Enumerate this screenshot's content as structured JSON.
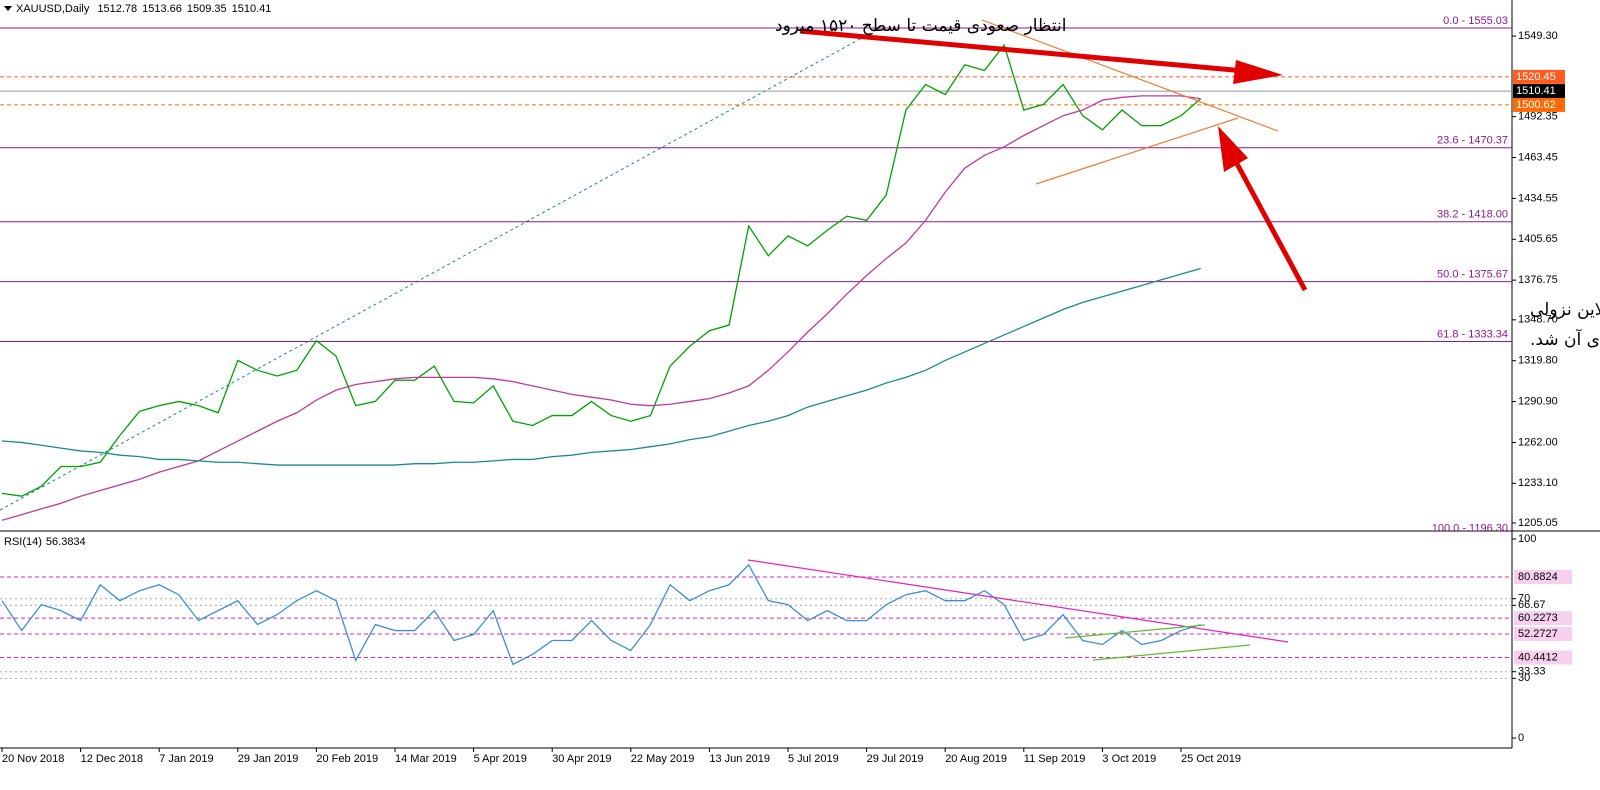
{
  "chart_data": [
    {
      "type": "line",
      "title": "XAUUSD,Daily",
      "ohlc": [
        1512.78,
        1513.66,
        1509.35,
        1510.41
      ],
      "categories": [
        "20 Nov 2018",
        null,
        null,
        null,
        "12 Dec 2018",
        null,
        null,
        null,
        "7 Jan 2019",
        null,
        null,
        null,
        "29 Jan 2019",
        null,
        null,
        null,
        "20 Feb 2019",
        null,
        null,
        null,
        "14 Mar 2019",
        null,
        null,
        null,
        "5 Apr 2019",
        null,
        null,
        null,
        "30 Apr 2019",
        null,
        null,
        null,
        "22 May 2019",
        null,
        null,
        null,
        "13 Jun 2019",
        null,
        null,
        null,
        "5 Jul 2019",
        null,
        null,
        null,
        "29 Jul 2019",
        null,
        null,
        null,
        "20 Aug 2019",
        null,
        null,
        null,
        "11 Sep 2019",
        null,
        null,
        null,
        "3 Oct 2019",
        null,
        null,
        null,
        "25 Oct 2019",
        null
      ],
      "series": [
        {
          "color": "#00a000",
          "values": [
            1226,
            1224,
            1231,
            1245,
            1245,
            1248,
            1267,
            1284,
            1288,
            1291,
            1288,
            1283,
            1320,
            1313,
            1309,
            1313,
            1334,
            1323,
            1288,
            1291,
            1306,
            1306,
            1316,
            1291,
            1290,
            1302,
            1277,
            1274,
            1281,
            1281,
            1291,
            1281,
            1277,
            1281,
            1316,
            1330,
            1341,
            1345,
            1415,
            1394,
            1408,
            1401,
            1412,
            1422,
            1419,
            1437,
            1497,
            1515,
            1508,
            1529,
            1525,
            1543,
            1497,
            1501,
            1515,
            1493,
            1483,
            1497,
            1486,
            1486,
            1493,
            1505
          ]
        },
        {
          "color": "#c0399a",
          "values": [
            1207,
            1211,
            1215,
            1219,
            1224,
            1228,
            1232,
            1236,
            1241,
            1245,
            1249,
            1256,
            1263,
            1270,
            1277,
            1283,
            1292,
            1299,
            1303,
            1305,
            1307,
            1308,
            1308,
            1308,
            1308,
            1307,
            1305,
            1302,
            1299,
            1296,
            1294,
            1292,
            1289,
            1288,
            1289,
            1291,
            1293,
            1297,
            1302,
            1313,
            1326,
            1340,
            1353,
            1367,
            1380,
            1392,
            1403,
            1419,
            1439,
            1456,
            1465,
            1471,
            1479,
            1486,
            1493,
            1497,
            1504,
            1506,
            1507,
            1507,
            1507,
            1505
          ]
        },
        {
          "color": "#1a8a8a",
          "values": [
            1263,
            1262,
            1260,
            1258,
            1256,
            1255,
            1253,
            1252,
            1250,
            1250,
            1249,
            1248,
            1248,
            1247,
            1246,
            1246,
            1246,
            1246,
            1246,
            1246,
            1246,
            1247,
            1247,
            1248,
            1248,
            1249,
            1250,
            1250,
            1252,
            1253,
            1255,
            1256,
            1257,
            1259,
            1261,
            1264,
            1266,
            1270,
            1274,
            1277,
            1281,
            1287,
            1291,
            1295,
            1299,
            1304,
            1308,
            1313,
            1320,
            1326,
            1332,
            1338,
            1344,
            1350,
            1356,
            1361,
            1365,
            1369,
            1373,
            1377,
            1381,
            1385
          ]
        }
      ],
      "ylim": [
        1199.4,
        1574.8
      ],
      "yticks": [
        {
          "value": 1549.3,
          "label": "1549.30"
        },
        1492.35,
        1463.45,
        1434.55,
        1405.65,
        1376.75,
        {
          "value": 1348.7,
          "label": "1348.70"
        },
        {
          "value": 1319.8,
          "label": "1319.80"
        },
        {
          "value": 1290.9,
          "label": "1290.90"
        },
        {
          "value": 1262.0,
          "label": "1262.00"
        },
        {
          "value": 1233.1,
          "label": "1233.10"
        },
        1205.05
      ],
      "price_labels": [
        {
          "value": 1520.45,
          "color": "#ff5a1f"
        },
        {
          "value": 1510.41,
          "color": "#000000"
        },
        {
          "value": 1500.62,
          "color": "#ff6a00"
        }
      ],
      "levels": [
        {
          "value": 1555.03,
          "label": "0.0 - 1555.03"
        },
        {
          "value": 1470.37,
          "label": "23.6 - 1470.37"
        },
        {
          "value": 1418.0,
          "label": "38.2 - 1418.00"
        },
        {
          "value": 1375.67,
          "label": "50.0 - 1375.67"
        },
        {
          "value": 1333.34,
          "label": "61.8 - 1333.34"
        },
        {
          "value": 1196.3,
          "label": "100.0 - 1196.30"
        }
      ],
      "level_color": "#8b1a8b",
      "annotations": [
        "انتظار صعودی قیمت تا سطح ۱۵۲۰ میرود",
        "قیمت روز گذشته موفق به شکست ترندلاین نزولی",
        "و قرار گرفتن بالای آن شد."
      ]
    },
    {
      "type": "line",
      "title": "RSI(14)",
      "last": 56.3834,
      "series": [
        {
          "color": "#3a8fd6",
          "values": [
            69,
            54,
            67,
            64,
            59,
            77,
            69,
            74,
            77,
            72,
            59,
            64,
            69,
            57,
            62,
            69,
            74,
            69,
            39,
            57,
            54,
            54,
            64,
            49,
            52,
            64,
            37,
            42,
            49,
            49,
            59,
            49,
            44,
            57,
            77,
            69,
            74,
            77,
            87,
            69,
            67,
            59,
            64,
            59,
            59,
            67,
            72,
            74,
            69,
            69,
            74,
            67,
            49,
            52,
            62,
            49,
            47,
            54,
            47,
            49,
            54,
            57
          ]
        }
      ],
      "ylim": [
        -5,
        103
      ],
      "yticks": [
        100,
        70,
        66.67,
        33.33,
        30,
        0
      ],
      "levels": [
        80.8824,
        60.2273,
        52.2727,
        40.4412
      ],
      "level_color": "#e020c0"
    }
  ]
}
